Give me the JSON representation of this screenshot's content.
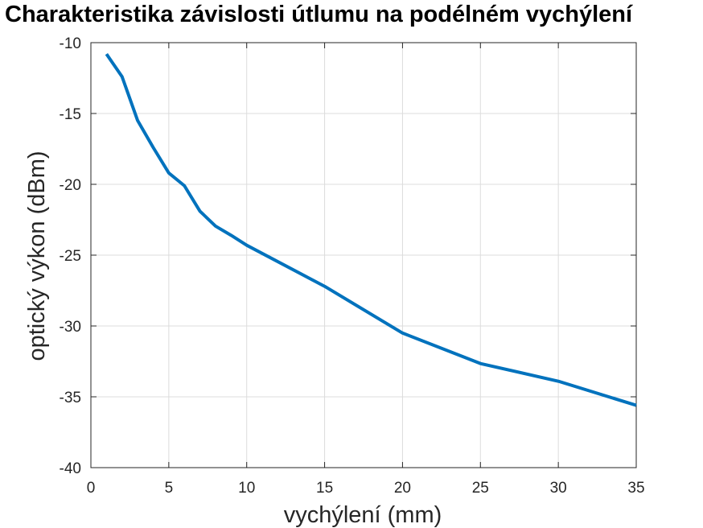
{
  "chart_data": {
    "type": "line",
    "title": "Charakteristika závislosti útlumu na podélném vychýlení",
    "xlabel": "vychýlení (mm)",
    "ylabel": "optický výkon (dBm)",
    "xlim": [
      0,
      35
    ],
    "ylim": [
      -40,
      -10
    ],
    "xticks": [
      0,
      5,
      10,
      15,
      20,
      25,
      30,
      35
    ],
    "yticks": [
      -10,
      -15,
      -20,
      -25,
      -30,
      -35,
      -40
    ],
    "xtick_labels": [
      "0",
      "5",
      "10",
      "15",
      "20",
      "25",
      "30",
      "35"
    ],
    "ytick_labels": [
      "-10",
      "-15",
      "-20",
      "-25",
      "-30",
      "-35",
      "-40"
    ],
    "grid": true,
    "series": [
      {
        "color": "#0072bd",
        "x": [
          1,
          2,
          3,
          4,
          5,
          6,
          7,
          8,
          9,
          10,
          15,
          20,
          25,
          30,
          35
        ],
        "y": [
          -10.8,
          -12.4,
          -15.5,
          -17.4,
          -19.2,
          -20.1,
          -21.9,
          -22.95,
          -23.6,
          -24.3,
          -27.2,
          -30.5,
          -32.65,
          -33.9,
          -35.6
        ]
      }
    ]
  }
}
